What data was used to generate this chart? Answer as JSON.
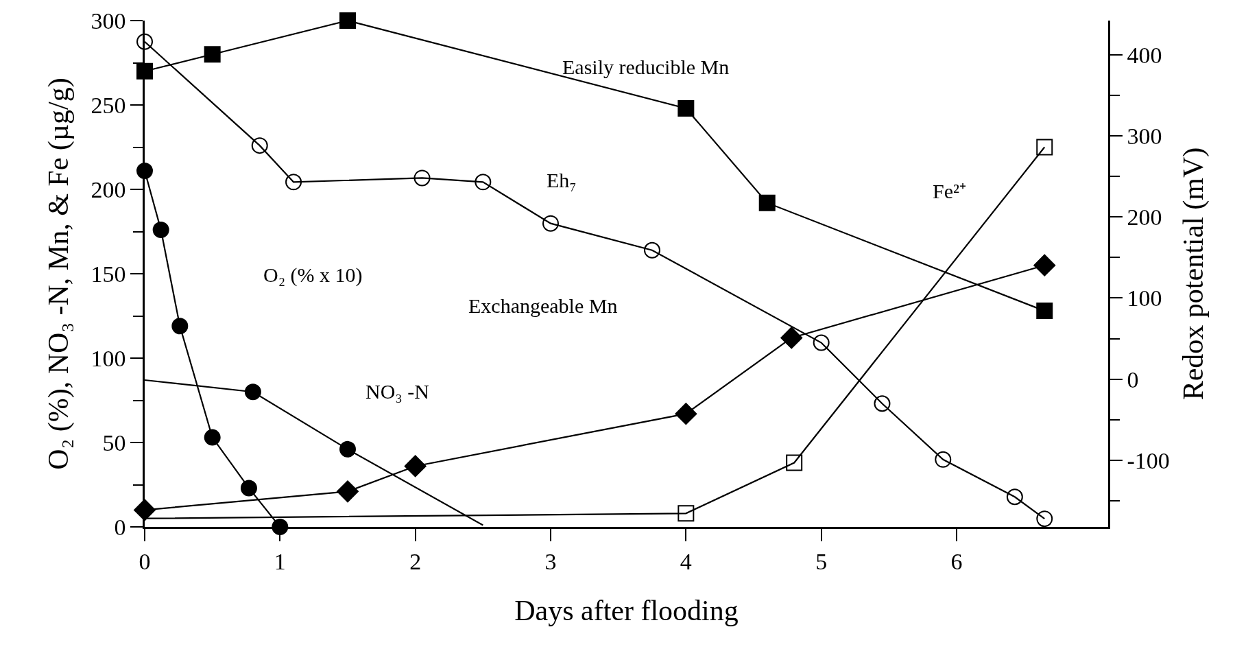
{
  "chart_data": {
    "type": "line",
    "xlabel": "Days after flooding",
    "ylabel": "O₂ (%), NO₃ -N, Mn, & Fe (µg/g)",
    "y2label": "Redox potential (mV)",
    "xlim": [
      0,
      7.12
    ],
    "xticks": [
      0,
      1,
      2,
      3,
      4,
      5,
      6
    ],
    "ylim": [
      0,
      300
    ],
    "yticks": [
      0,
      {
        "value": 25,
        "label": null
      },
      50,
      {
        "value": 75,
        "label": null
      },
      100,
      {
        "value": 125,
        "label": null
      },
      150,
      {
        "value": 175,
        "label": null
      },
      200,
      {
        "value": 225,
        "label": null
      },
      250,
      {
        "value": 275,
        "label": null
      },
      300
    ],
    "y2lim": [
      -182,
      442
    ],
    "y2ticks": [
      {
        "value": -150,
        "label": null
      },
      -100,
      {
        "value": -50,
        "label": null
      },
      0,
      {
        "value": 50,
        "label": null
      },
      100,
      {
        "value": 150,
        "label": null
      },
      200,
      {
        "value": 250,
        "label": null
      },
      300,
      {
        "value": 350,
        "label": null
      },
      400
    ],
    "line_style": "solid",
    "series": [
      {
        "color": "#000000",
        "marker": "square",
        "x": [
          0,
          0.5,
          1.5,
          4,
          4.6,
          6.65
        ],
        "values": [
          270,
          280,
          300,
          248,
          192,
          128
        ]
      },
      {
        "color": "#000000",
        "marker": "circle-open",
        "axis": "y2",
        "x": [
          0,
          0.85,
          1.1,
          2.05,
          2.5,
          3.0,
          3.75,
          5.0,
          5.45,
          5.9,
          6.43,
          6.65
        ],
        "values": [
          416,
          288,
          243,
          248,
          243,
          192,
          159,
          45,
          -30,
          -99,
          -145,
          -172
        ]
      },
      {
        "color": "#000000",
        "marker": "circle",
        "x": [
          0,
          0.12,
          0.26,
          0.5,
          0.77,
          1.0
        ],
        "values": [
          211,
          176,
          119,
          53,
          23,
          0
        ]
      },
      {
        "color": "#000000",
        "marker": [
          "none",
          "circle",
          "circle",
          "none"
        ],
        "x": [
          0,
          0.8,
          1.5,
          2.5
        ],
        "values": [
          87,
          80,
          46,
          1
        ]
      },
      {
        "color": "#000000",
        "marker": "diamond",
        "x": [
          0,
          1.5,
          2.0,
          4.0,
          4.78,
          6.65
        ],
        "values": [
          10,
          21,
          36,
          67,
          112,
          155
        ]
      },
      {
        "color": "#000000",
        "marker": [
          "none",
          "square-open",
          "square-open",
          "square-open"
        ],
        "x": [
          0,
          4.0,
          4.8,
          6.65
        ],
        "values": [
          5,
          8,
          38,
          225
        ]
      }
    ],
    "annotations": [
      "Easily reducible Mn",
      "Eh₇",
      "Fe²⁺",
      "O₂ (% x 10)",
      "NO₃ -N",
      "Exchangeable Mn"
    ]
  }
}
